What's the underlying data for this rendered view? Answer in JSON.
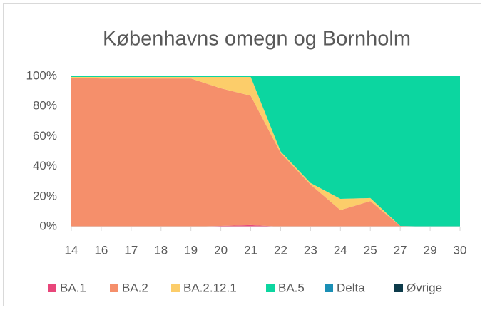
{
  "chart_data": {
    "type": "stacked_area",
    "title": "Københavns omegn og Bornholm",
    "categories": [
      "14",
      "16",
      "17",
      "18",
      "19",
      "20",
      "21",
      "22",
      "23",
      "24",
      "25",
      "27",
      "29",
      "30"
    ],
    "series": [
      {
        "name": "BA.1",
        "color": "#e8467a",
        "values": [
          0,
          0,
          0,
          0,
          0,
          0.5,
          1,
          0,
          0,
          0,
          0,
          0,
          0,
          0
        ]
      },
      {
        "name": "BA.2",
        "color": "#f58f6b",
        "values": [
          99,
          98.5,
          98.5,
          98.5,
          98.5,
          91.5,
          86,
          49,
          28,
          11,
          17,
          0.5,
          0,
          0
        ]
      },
      {
        "name": "BA.2.12.1",
        "color": "#fccd6a",
        "values": [
          0.5,
          1,
          1,
          1,
          1,
          7.5,
          12.5,
          1,
          1,
          7.5,
          2,
          0,
          0,
          0
        ]
      },
      {
        "name": "BA.5",
        "color": "#0cd6a0",
        "values": [
          0.5,
          0.5,
          0.5,
          0.5,
          0.5,
          0.5,
          0.5,
          50,
          71,
          81.5,
          81,
          99.5,
          100,
          100
        ]
      },
      {
        "name": "Delta",
        "color": "#1a8fb5",
        "values": [
          0,
          0,
          0,
          0,
          0,
          0,
          0,
          0,
          0,
          0,
          0,
          0,
          0,
          0
        ]
      },
      {
        "name": "Øvrige",
        "color": "#0d3b4a",
        "values": [
          0,
          0,
          0,
          0,
          0,
          0,
          0,
          0,
          0,
          0,
          0,
          0,
          0,
          0
        ]
      }
    ],
    "ylim": [
      0,
      100
    ],
    "yticks": [
      {
        "value": 0,
        "label": "0%"
      },
      {
        "value": 20,
        "label": "20%"
      },
      {
        "value": 40,
        "label": "40%"
      },
      {
        "value": 60,
        "label": "60%"
      },
      {
        "value": 80,
        "label": "80%"
      },
      {
        "value": 100,
        "label": "100%"
      }
    ],
    "legend": "bottom"
  }
}
